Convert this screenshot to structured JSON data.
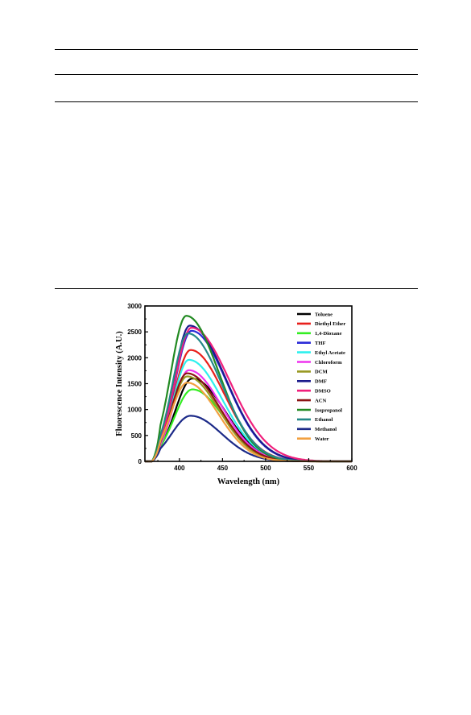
{
  "table_rules": [
    "top-rule",
    "header-rule",
    "body-rule",
    "bottom-rule"
  ],
  "chart_data": {
    "type": "line",
    "xlabel": "Wavelength (nm)",
    "ylabel": "Fluorescence Intensity (A.U.)",
    "xlim": [
      360,
      600
    ],
    "ylim": [
      0,
      3000
    ],
    "xticks": [
      400,
      450,
      500,
      550,
      600
    ],
    "yticks": [
      0,
      500,
      1000,
      1500,
      2000,
      2500,
      3000
    ],
    "grid": false,
    "legend_position": "top-right",
    "series": [
      {
        "name": "Toluene",
        "color": "#000000",
        "peak_x": 415,
        "peak_y": 1600,
        "sigma_left": 20,
        "sigma_right": 38
      },
      {
        "name": "Diethyl Ether",
        "color": "#e8201c",
        "peak_x": 413,
        "peak_y": 2150,
        "sigma_left": 19,
        "sigma_right": 39
      },
      {
        "name": "1,4-Dioxane",
        "color": "#33ee22",
        "peak_x": 415,
        "peak_y": 1390,
        "sigma_left": 21,
        "sigma_right": 37
      },
      {
        "name": "THF",
        "color": "#2b2bd8",
        "peak_x": 414,
        "peak_y": 2520,
        "sigma_left": 19,
        "sigma_right": 41
      },
      {
        "name": "Ethyl Acetate",
        "color": "#2ef0ee",
        "peak_x": 411,
        "peak_y": 1960,
        "sigma_left": 18,
        "sigma_right": 39
      },
      {
        "name": "Chloroform",
        "color": "#ee33ee",
        "peak_x": 411,
        "peak_y": 1760,
        "sigma_left": 18,
        "sigma_right": 38
      },
      {
        "name": "DCM",
        "color": "#999922",
        "peak_x": 409,
        "peak_y": 1640,
        "sigma_left": 18,
        "sigma_right": 37
      },
      {
        "name": "DMF",
        "color": "#1b1b8c",
        "peak_x": 412,
        "peak_y": 2620,
        "sigma_left": 18,
        "sigma_right": 42
      },
      {
        "name": "DMSO",
        "color": "#f0207c",
        "peak_x": 414,
        "peak_y": 2580,
        "sigma_left": 19,
        "sigma_right": 44
      },
      {
        "name": "ACN",
        "color": "#8c1414",
        "peak_x": 409,
        "peak_y": 1700,
        "sigma_left": 18,
        "sigma_right": 38
      },
      {
        "name": "Isopropanol",
        "color": "#228a22",
        "peak_x": 408,
        "peak_y": 2810,
        "sigma_left": 18,
        "sigma_right": 38
      },
      {
        "name": "Ethanol",
        "color": "#258888",
        "peak_x": 410,
        "peak_y": 2470,
        "sigma_left": 18,
        "sigma_right": 39
      },
      {
        "name": "Methanol",
        "color": "#1c2a88",
        "peak_x": 413,
        "peak_y": 880,
        "sigma_left": 22,
        "sigma_right": 36
      },
      {
        "name": "Water",
        "color": "#f2a040",
        "peak_x": 409,
        "peak_y": 1520,
        "sigma_left": 19,
        "sigma_right": 36
      }
    ]
  }
}
